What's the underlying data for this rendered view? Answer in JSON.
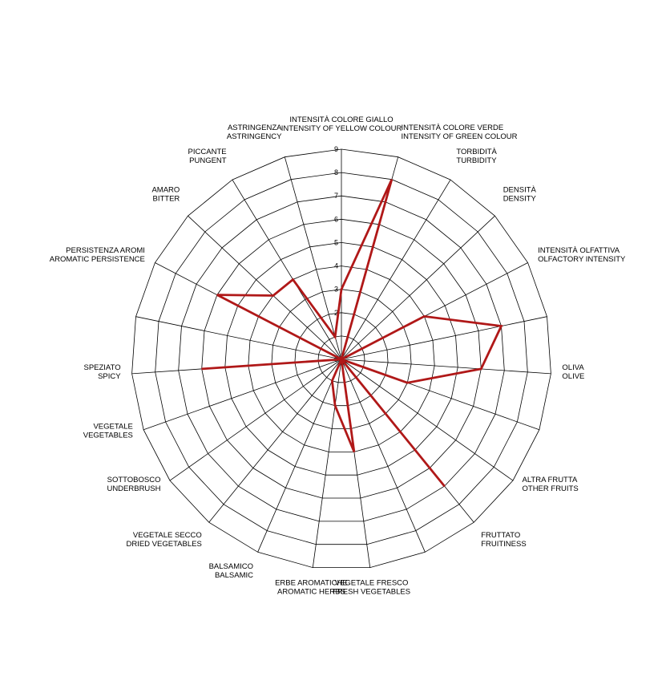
{
  "chart_data": {
    "type": "radar",
    "rmax": 9,
    "rings": [
      0,
      1,
      2,
      3,
      4,
      5,
      6,
      7,
      8,
      9
    ],
    "tick_labels": [
      "0",
      "2",
      "3",
      "4",
      "5",
      "6",
      "7",
      "8",
      "9"
    ],
    "series_color": "#b01818",
    "axes": [
      {
        "l1": "INTENSITÀ COLORE GIALLO",
        "l2": "INTENSITY OF YELLOW COLOUR",
        "value": 3
      },
      {
        "l1": "INTENSITÀ COLORE VERDE",
        "l2": "INTENSITY OF GREEN COLOUR",
        "value": 8
      },
      {
        "l1": "TORBIDITÀ",
        "l2": "TURBIDITY",
        "value": 0
      },
      {
        "l1": "DENSITÀ",
        "l2": "DENSITY",
        "value": 0
      },
      {
        "l1": "INTENSITÀ OLFATTIVA",
        "l2": "OLFACTORY INTENSITY",
        "value": 4
      },
      {
        "l1": "",
        "l2": "",
        "value": 7
      },
      {
        "l1": "OLIVA",
        "l2": "OLIVE",
        "value": 6
      },
      {
        "l1": "",
        "l2": "",
        "value": 3
      },
      {
        "l1": "ALTRA FRUTTA",
        "l2": "OTHER FRUITS",
        "value": 0
      },
      {
        "l1": "FRUTTATO",
        "l2": "FRUITINESS",
        "value": 7
      },
      {
        "l1": "",
        "l2": "",
        "value": 0
      },
      {
        "l1": "VEGETALE FRESCO",
        "l2": "FRESH VEGETABLES",
        "value": 4
      },
      {
        "l1": "ERBE AROMATICHE",
        "l2": "AROMATIC HERBS",
        "value": 2
      },
      {
        "l1": "BALSAMICO",
        "l2": "BALSAMIC",
        "value": 1
      },
      {
        "l1": "VEGETALE SECCO",
        "l2": "DRIED VEGETABLES",
        "value": 0
      },
      {
        "l1": "SOTTOBOSCO",
        "l2": "UNDERBRUSH",
        "value": 0
      },
      {
        "l1": "VEGETALE",
        "l2": "VEGETABLES",
        "value": 0
      },
      {
        "l1": "SPEZIATO",
        "l2": "SPICY",
        "value": 6
      },
      {
        "l1": "",
        "l2": "",
        "value": 0
      },
      {
        "l1": "PERSISTENZA AROMI",
        "l2": "AROMATIC PERSISTENCE",
        "value": 6
      },
      {
        "l1": "AMARO",
        "l2": "BITTER",
        "value": 4
      },
      {
        "l1": "PICCANTE",
        "l2": "PUNGENT",
        "value": 4
      },
      {
        "l1": "ASTRINGENZA",
        "l2": "ASTRINGENCY",
        "value": 1
      }
    ]
  }
}
